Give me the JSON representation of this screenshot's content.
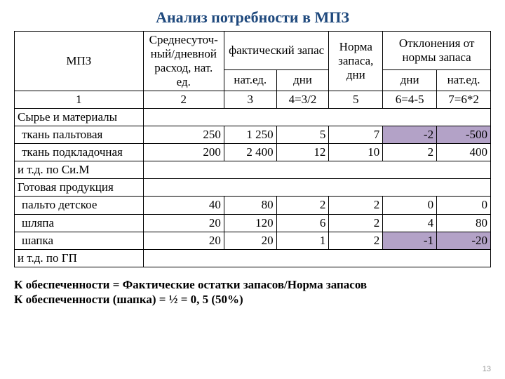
{
  "title": "Анализ потребности в МПЗ",
  "colors": {
    "title": "#1f497d",
    "highlight": "#b3a2c7",
    "border": "#000000",
    "text": "#000000",
    "bg": "#ffffff"
  },
  "head": {
    "mpz": "МПЗ",
    "c2": "Среднесуточ-ный/дневной расход, нат. ед.",
    "fact_top": "фактический запас",
    "c3": "нат.ед.",
    "c4": "дни",
    "c5": "Норма запаса, дни",
    "dev_top": "Отклонения от нормы запаса",
    "c6": "дни",
    "c7": "нат.ед."
  },
  "numrow": {
    "c1": "1",
    "c2": "2",
    "c3": "3",
    "c4": "4=3/2",
    "c5": "5",
    "c6": "6=4-5",
    "c7": "7=6*2"
  },
  "rows": {
    "r1_lbl": "Сырье и материалы",
    "r2": {
      "lbl": "ткань пальтовая",
      "c2": "250",
      "c3": "1 250",
      "c4": "5",
      "c5": "7",
      "c6": "-2",
      "c7": "-500"
    },
    "r3": {
      "lbl": "ткань подкладочная",
      "c2": "200",
      "c3": "2 400",
      "c4": "12",
      "c5": "10",
      "c6": "2",
      "c7": "400"
    },
    "r4_lbl": "и т.д. по Си.М",
    "r5_lbl": "Готовая продукция",
    "r6": {
      "lbl": "пальто детское",
      "c2": "40",
      "c3": "80",
      "c4": "2",
      "c5": "2",
      "c6": "0",
      "c7": "0"
    },
    "r7": {
      "lbl": "шляпа",
      "c2": "20",
      "c3": "120",
      "c4": "6",
      "c5": "2",
      "c6": "4",
      "c7": "80"
    },
    "r8": {
      "lbl": "шапка",
      "c2": "20",
      "c3": "20",
      "c4": "1",
      "c5": "2",
      "c6": "-1",
      "c7": "-20"
    },
    "r9_lbl": "и т.д. по ГП"
  },
  "footer": {
    "l1": "К обеспеченности = Фактические остатки запасов/Норма запасов",
    "l2": "К обеспеченности (шапка) = ½ = 0, 5 (50%)"
  },
  "pagenum": "13"
}
